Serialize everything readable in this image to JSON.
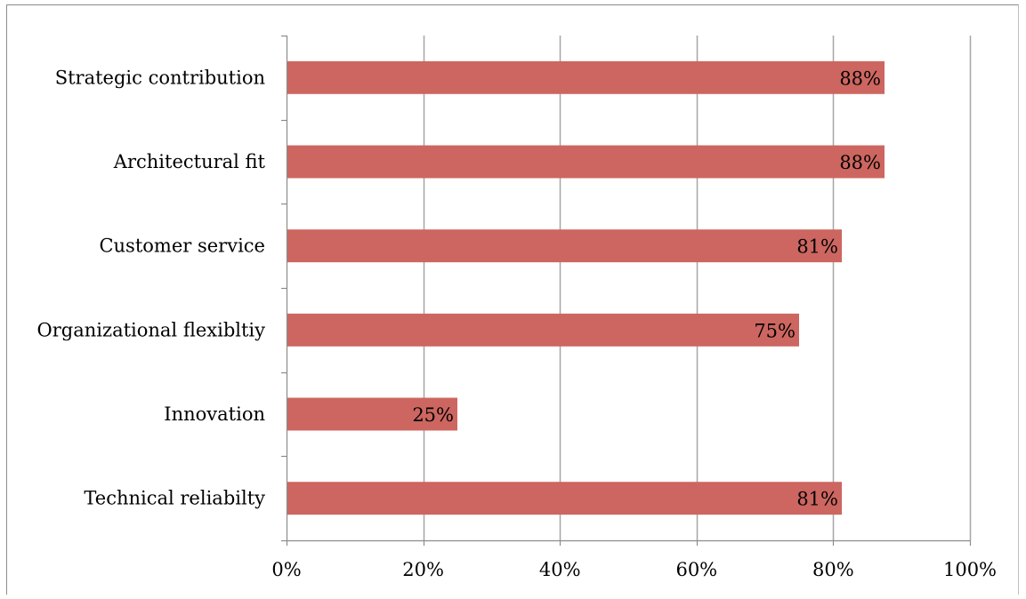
{
  "chart_data": {
    "type": "bar",
    "orientation": "horizontal",
    "title": "",
    "xlabel": "",
    "ylabel": "",
    "categories": [
      "Strategic contribution",
      "Architectural fit",
      "Customer service",
      "Organizational flexibltiy",
      "Innovation",
      "Technical reliabilty"
    ],
    "values": [
      0.875,
      0.875,
      0.8125,
      0.75,
      0.25,
      0.8125
    ],
    "data_labels": [
      "88%",
      "88%",
      "81%",
      "75%",
      "25%",
      "81%"
    ],
    "xlim": [
      0,
      1
    ],
    "x_ticks": [
      0,
      0.2,
      0.4,
      0.6,
      0.8,
      1.0
    ],
    "x_tick_labels": [
      "0%",
      "20%",
      "40%",
      "60%",
      "80%",
      "100%"
    ],
    "grid": "vertical major gridlines",
    "legend": "none",
    "bar_color": "#cd6660",
    "gridline_color": "#a6a6a6"
  }
}
